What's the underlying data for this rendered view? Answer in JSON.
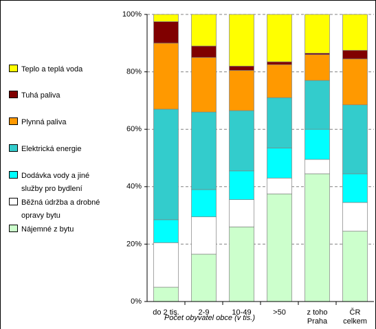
{
  "chart_data": {
    "type": "stacked_bar",
    "x_label": "Počet obyvatel obce (v tis.)",
    "categories": [
      "do 2 tis.",
      "2-9",
      "10-49",
      ">50",
      "z toho Praha",
      "ČR celkem"
    ],
    "series": [
      {
        "name": "Nájemné z bytu",
        "color": "#ccffcc",
        "values": [
          5,
          16.5,
          26,
          37.5,
          44.5,
          24.5
        ]
      },
      {
        "name": "Běžná údržba a drobné opravy bytu",
        "color": "#ffffff",
        "values": [
          15.5,
          13,
          9.5,
          5.5,
          5,
          10
        ]
      },
      {
        "name": "Dodávka vody a jiné služby pro bydlení",
        "color": "#00ffff",
        "values": [
          8,
          9.5,
          10,
          10.5,
          10.5,
          10
        ]
      },
      {
        "name": "Elektrická energie",
        "color": "#33cccc",
        "values": [
          38.5,
          27,
          21,
          17.5,
          17,
          24
        ]
      },
      {
        "name": "Plynná paliva",
        "color": "#ff9900",
        "values": [
          23,
          19,
          14,
          11.5,
          9,
          16
        ]
      },
      {
        "name": "Tuhá paliva",
        "color": "#800000",
        "values": [
          7.5,
          4,
          1.5,
          1,
          0.5,
          3
        ]
      },
      {
        "name": "Teplo a teplá voda",
        "color": "#ffff00",
        "values": [
          2.5,
          11,
          18,
          16.5,
          13.5,
          12.5
        ]
      }
    ],
    "ylim": [
      0,
      100
    ],
    "yticks": [
      {
        "value": 0,
        "label": "0%"
      },
      {
        "value": 20,
        "label": "20%"
      },
      {
        "value": 40,
        "label": "40%"
      },
      {
        "value": 60,
        "label": "60%"
      },
      {
        "value": 80,
        "label": "80%"
      },
      {
        "value": 100,
        "label": "100%"
      }
    ],
    "grid": true
  }
}
